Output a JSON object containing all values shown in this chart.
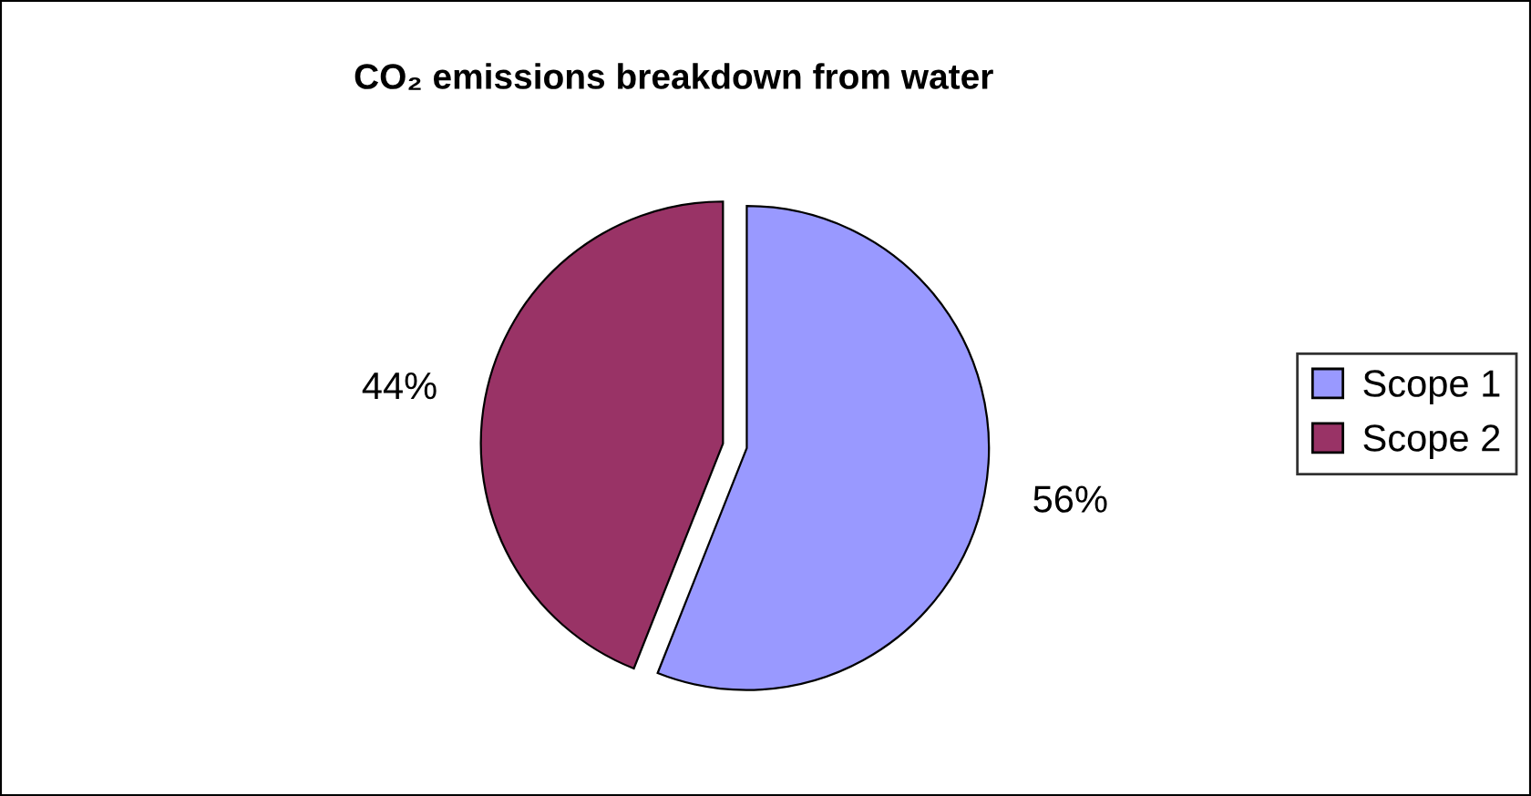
{
  "chart_data": {
    "type": "pie",
    "title": "CO₂ emissions breakdown from water",
    "categories": [
      "Scope 1",
      "Scope 2"
    ],
    "values": [
      56,
      44
    ],
    "colors": [
      "#9999ff",
      "#993366"
    ],
    "value_labels": [
      "56%",
      "44%"
    ],
    "legend": "right"
  }
}
